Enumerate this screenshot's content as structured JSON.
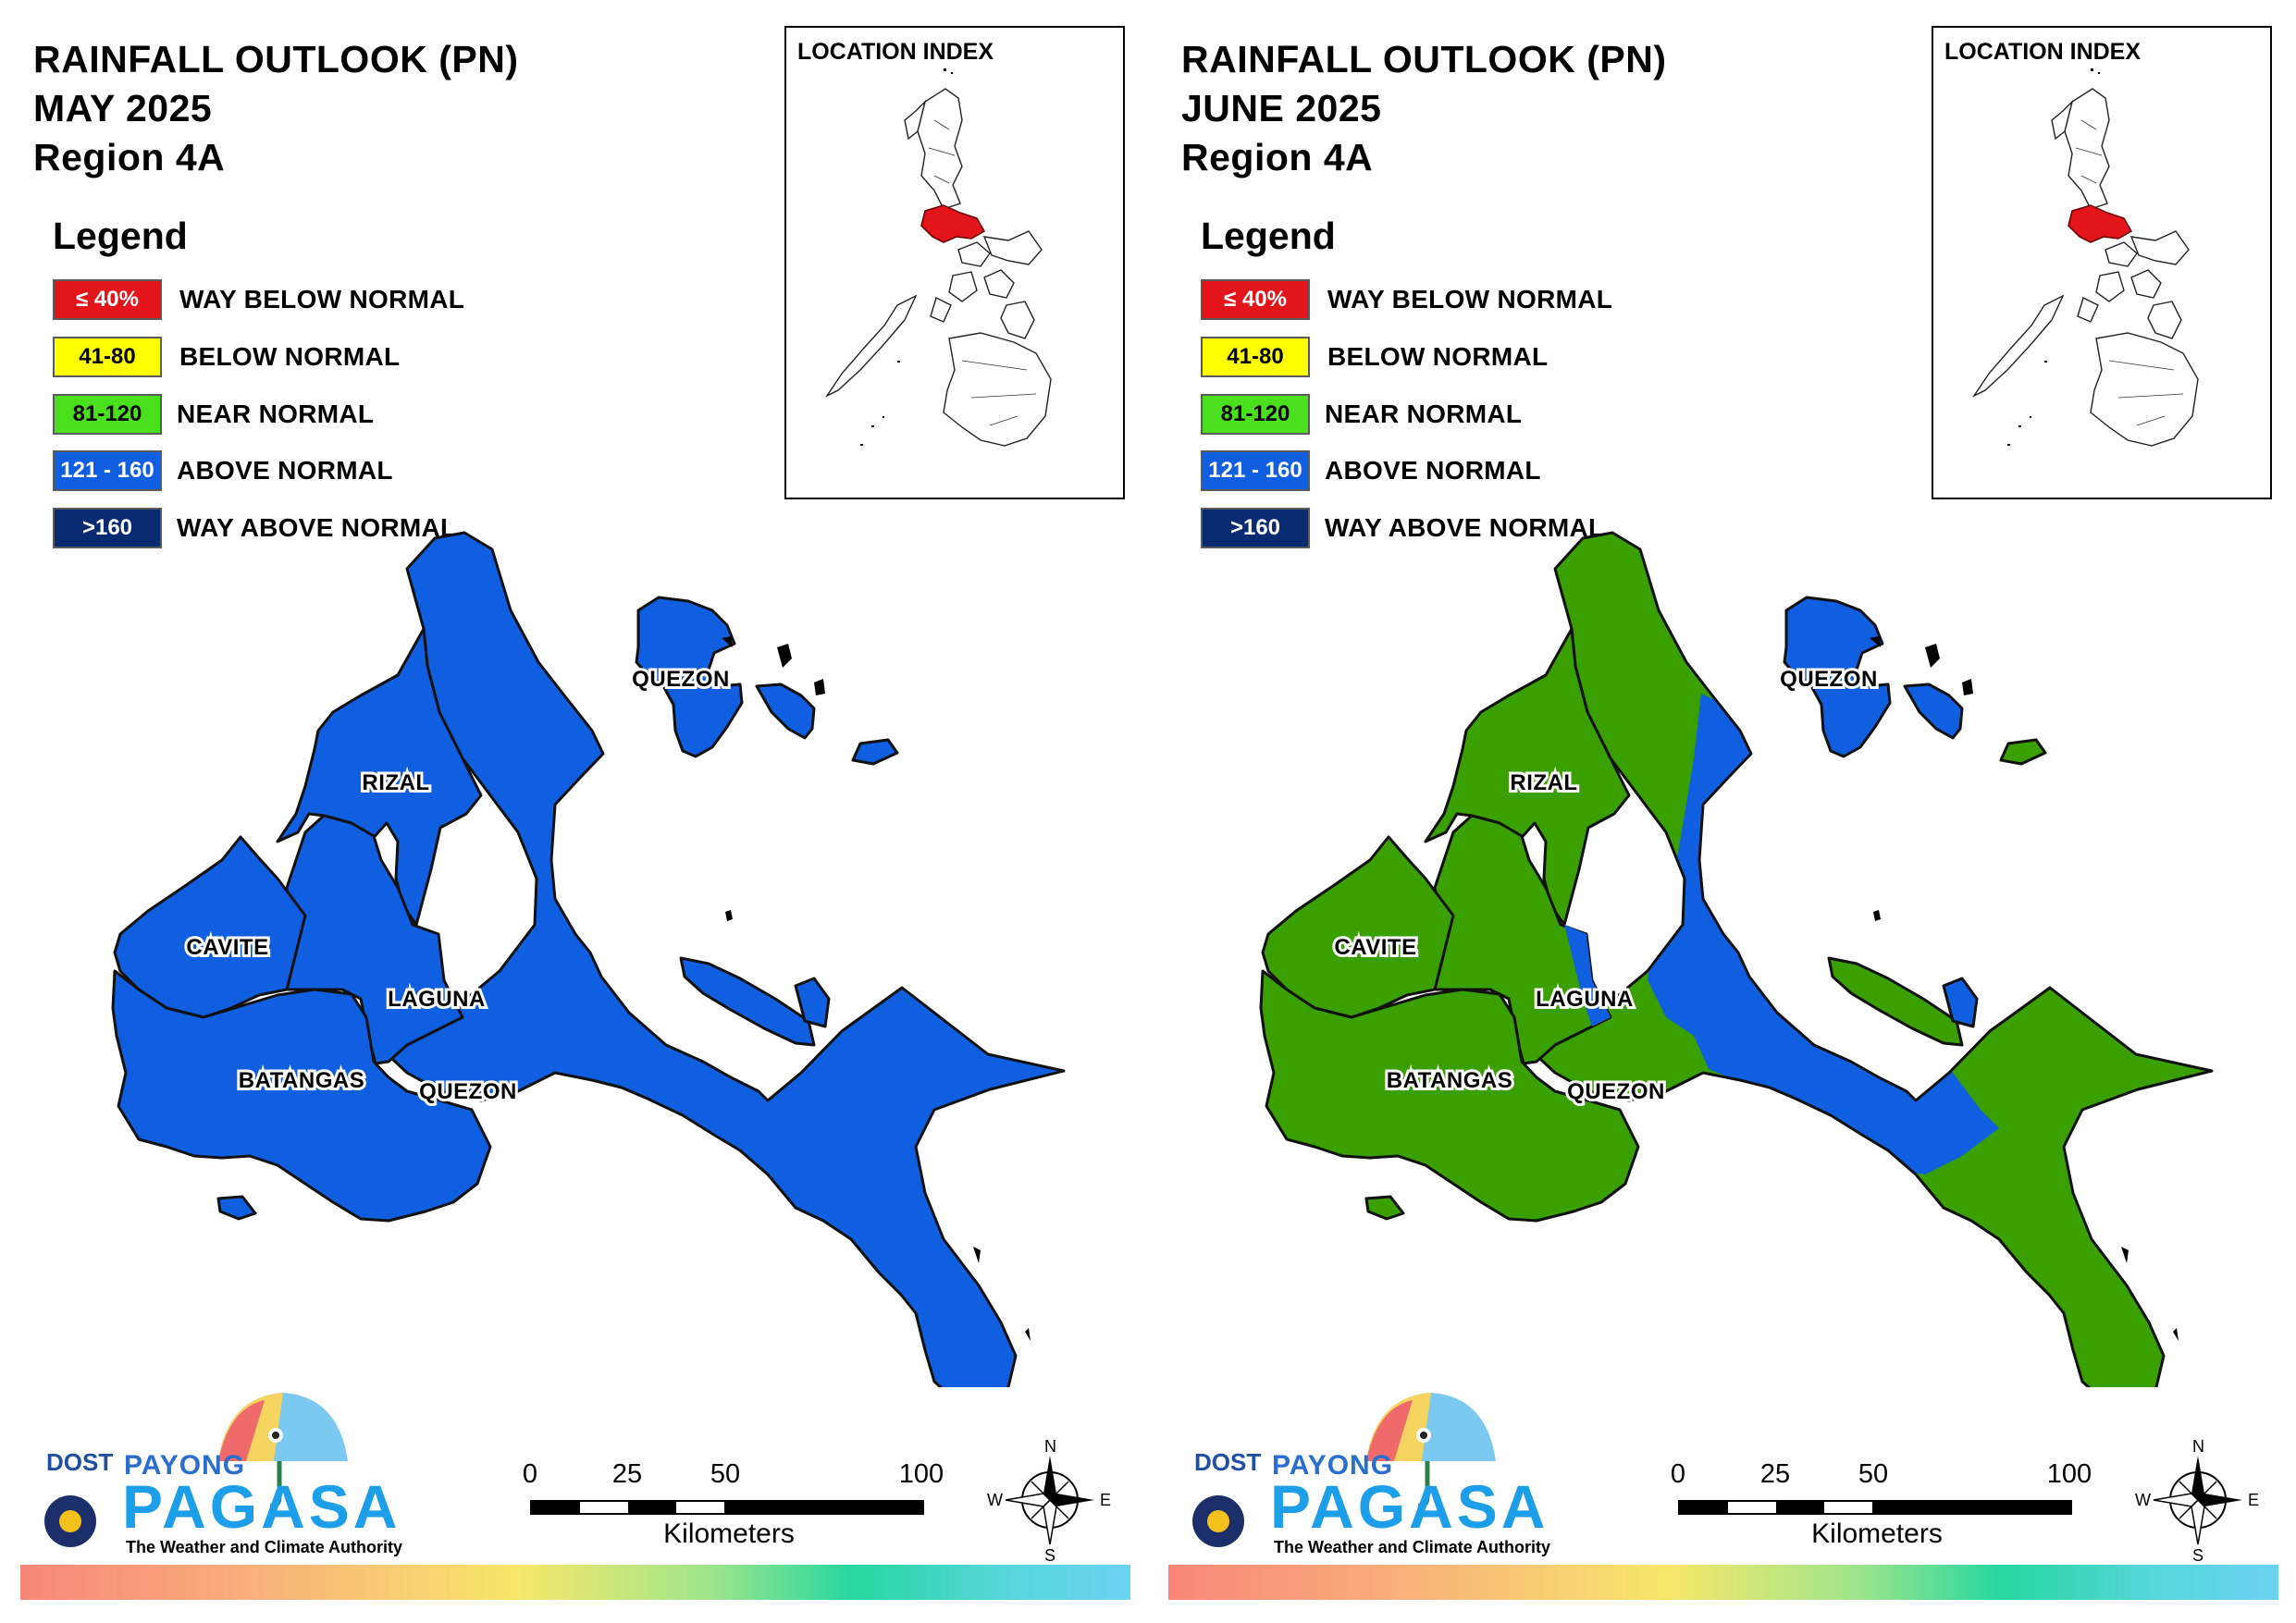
{
  "colors": {
    "way_below": "#e3151b",
    "below": "#ffff00",
    "near": "#39a000",
    "near_legend": "#4ae01e",
    "above": "#0f5fe0",
    "way_above": "#082a70"
  },
  "legend": {
    "heading": "Legend",
    "items": [
      {
        "range": "≤ 40%",
        "label": "WAY BELOW NORMAL",
        "color": "#e3151b",
        "text_color": "#ffffff"
      },
      {
        "range": "41-80",
        "label": "BELOW NORMAL",
        "color": "#ffff00",
        "text_color": "#000000"
      },
      {
        "range": "81-120",
        "label": "NEAR NORMAL",
        "color": "#4ae01e",
        "text_color": "#000000"
      },
      {
        "range": "121 - 160",
        "label": "ABOVE NORMAL",
        "color": "#0f5fe0",
        "text_color": "#ffffff"
      },
      {
        "range": ">160",
        "label": "WAY ABOVE NORMAL",
        "color": "#082a70",
        "text_color": "#ffffff"
      }
    ]
  },
  "inset": {
    "title": "LOCATION INDEX"
  },
  "scale_bar": {
    "ticks": [
      "0",
      "25",
      "50",
      "100"
    ],
    "unit": "Kilometers"
  },
  "compass": {
    "n": "N",
    "s": "S",
    "e": "E",
    "w": "W"
  },
  "logo": {
    "dost": "DOST",
    "payong": "PAYONG",
    "pagasa": "PAGASA",
    "tagline": "The Weather and Climate Authority"
  },
  "panels": [
    {
      "title_line1": "RAINFALL OUTLOOK (PN)",
      "title_line2": "MAY 2025",
      "title_line3": "Region 4A",
      "provinces": {
        "rizal": {
          "label": "RIZAL",
          "category": "above"
        },
        "cavite": {
          "label": "CAVITE",
          "category": "above"
        },
        "laguna": {
          "label": "LAGUNA",
          "category": "above"
        },
        "batangas": {
          "label": "BATANGAS",
          "category": "above"
        },
        "quezon_main": {
          "label": "QUEZON",
          "category": "above"
        },
        "quezon_north": {
          "label": "QUEZON",
          "category": "above"
        }
      }
    },
    {
      "title_line1": "RAINFALL OUTLOOK (PN)",
      "title_line2": "JUNE 2025",
      "title_line3": "Region 4A",
      "provinces": {
        "rizal": {
          "label": "RIZAL",
          "category": "near"
        },
        "cavite": {
          "label": "CAVITE",
          "category": "near"
        },
        "laguna": {
          "label": "LAGUNA",
          "category": "near"
        },
        "batangas": {
          "label": "BATANGAS",
          "category": "near"
        },
        "quezon_main": {
          "label": "QUEZON",
          "category": "mixed: above (central band), near (north and south)"
        },
        "quezon_north": {
          "label": "QUEZON",
          "category": "above"
        }
      }
    }
  ]
}
